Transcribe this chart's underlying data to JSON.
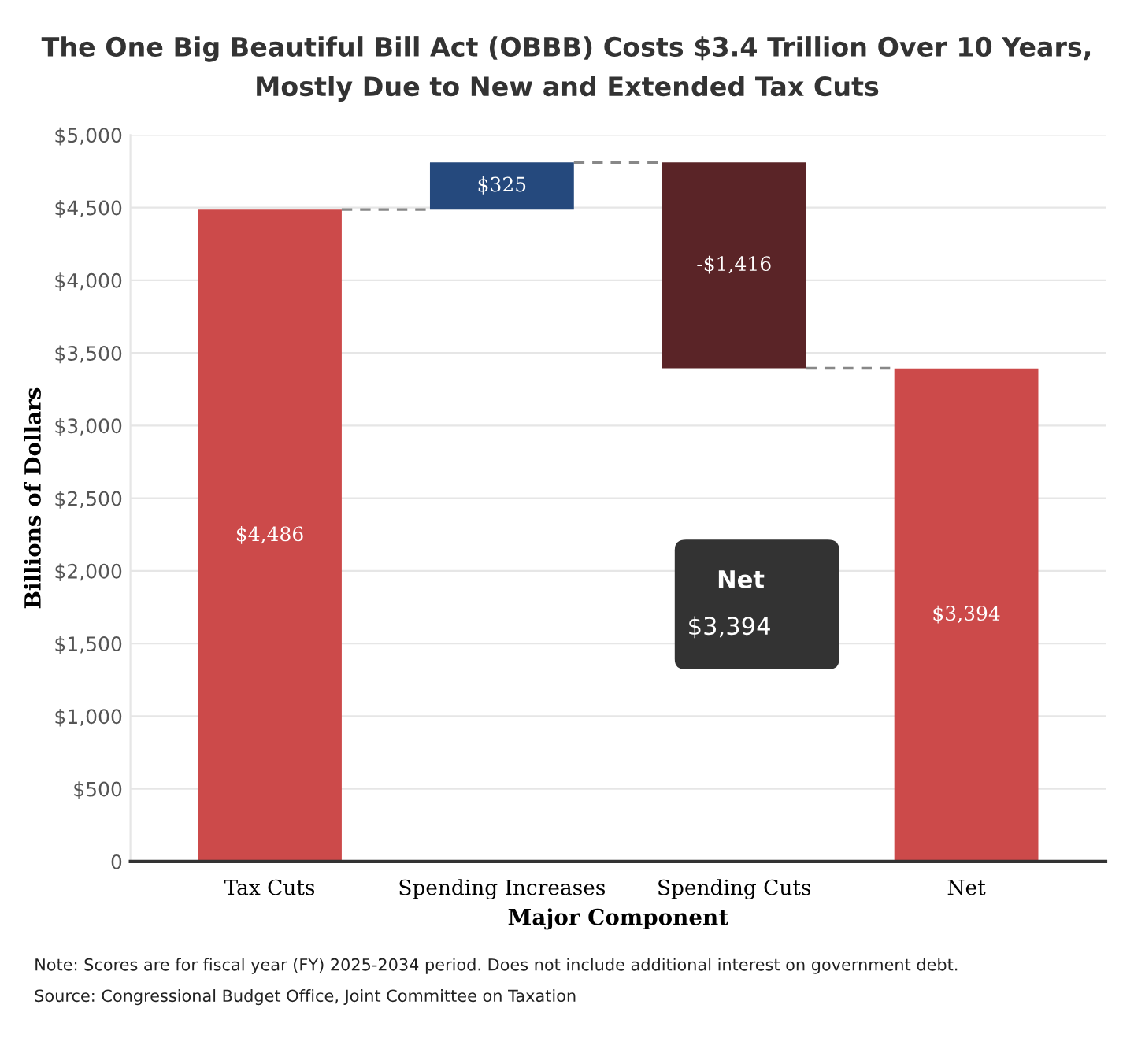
{
  "chart_data": {
    "type": "bar",
    "title": "The One Big Beautiful Bill Act (OBBB) Costs $3.4 Trillion Over 10 Years,\nMostly Due to New and Extended Tax Cuts",
    "xlabel": "Major Component",
    "ylabel": "Billions of Dollars",
    "categories": [
      "Tax Cuts",
      "Spending Increases",
      "Spending Cuts",
      "Net"
    ],
    "values": [
      4486,
      325,
      -1416,
      3394
    ],
    "base": [
      0,
      4486,
      4811,
      0
    ],
    "colors": [
      "#cc4a4a",
      "#25497d",
      "#5a2427",
      "#cc4a4a"
    ],
    "value_labels": [
      "$4,486",
      "$325",
      "-$1,416",
      "$3,394"
    ],
    "ylim": [
      0,
      5000
    ],
    "yticks": [
      {
        "value": 0,
        "label": "0"
      },
      {
        "value": 500,
        "label": "$500"
      },
      {
        "value": 1000,
        "label": "$1,000"
      },
      {
        "value": 1500,
        "label": "$1,500"
      },
      {
        "value": 2000,
        "label": "$2,000"
      },
      {
        "value": 2500,
        "label": "$2,500"
      },
      {
        "value": 3000,
        "label": "$3,000"
      },
      {
        "value": 3500,
        "label": "$3,500"
      },
      {
        "value": 4000,
        "label": "$4,000"
      },
      {
        "value": 4500,
        "label": "$4,500"
      },
      {
        "value": 5000,
        "label": "$5,000"
      }
    ],
    "grid": "y",
    "legend": false,
    "annotations": [
      "Note: Scores are for fiscal year (FY) 2025-2034 period. Does not include additional interest on government debt.",
      "Source: Congressional Budget Office, Joint Committee on Taxation",
      "Net",
      "$3,394"
    ]
  }
}
